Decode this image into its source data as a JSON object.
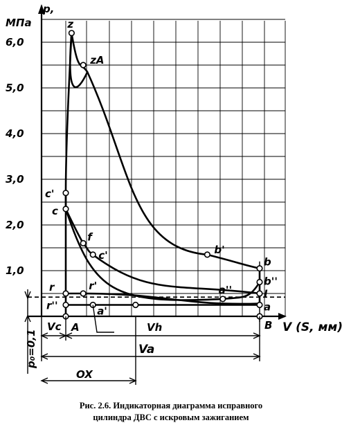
{
  "chart_data": {
    "type": "line",
    "title": "",
    "ylabel_line1": "p,",
    "ylabel_line2": "МПа",
    "xlabel": "V (S, мм)",
    "ylim": [
      0,
      6.5
    ],
    "y_ticks": [
      1.0,
      2.0,
      3.0,
      4.0,
      5.0,
      6.0
    ],
    "y_tick_labels": [
      "1,0",
      "2,0",
      "3,0",
      "4,0",
      "5,0",
      "6,0"
    ],
    "ambient_pressure_label": "p₀=0,1",
    "ambient_pressure": 0.1,
    "grid": true,
    "x_labels": {
      "Vc": "Vc",
      "Vh": "Vh",
      "Va": "Va",
      "OX": "OX",
      "A": "A",
      "B": "B"
    },
    "points": [
      {
        "label": "z",
        "V": 0.03,
        "p": 6.2
      },
      {
        "label": "zA",
        "V": 0.09,
        "p": 5.5
      },
      {
        "label": "c'",
        "V": 0.0,
        "p": 2.7
      },
      {
        "label": "c",
        "V": 0.0,
        "p": 2.35
      },
      {
        "label": "f",
        "V": 0.09,
        "p": 1.6
      },
      {
        "label": "c'",
        "V": 0.14,
        "p": 1.35
      },
      {
        "label": "b'",
        "V": 0.73,
        "p": 1.35
      },
      {
        "label": "b",
        "V": 1.0,
        "p": 1.05
      },
      {
        "label": "b''",
        "V": 1.0,
        "p": 0.75
      },
      {
        "label": "l",
        "V": 1.0,
        "p": 0.5
      },
      {
        "label": "a''",
        "V": 0.81,
        "p": 0.38
      },
      {
        "label": "a",
        "V": 1.0,
        "p": 0.25
      },
      {
        "label": "r",
        "V": 0.0,
        "p": 0.5
      },
      {
        "label": "r'",
        "V": 0.09,
        "p": 0.5
      },
      {
        "label": "r''",
        "V": 0.0,
        "p": 0.25
      },
      {
        "label": "a'",
        "V": 0.14,
        "p": 0.25
      },
      {
        "label": "",
        "V": 0.36,
        "p": 0.25
      }
    ]
  },
  "caption": {
    "line1": "Рис. 2.6. Индикаторная диаграмма исправного",
    "line2": "цилиндра ДВС с искровым зажиганием"
  }
}
